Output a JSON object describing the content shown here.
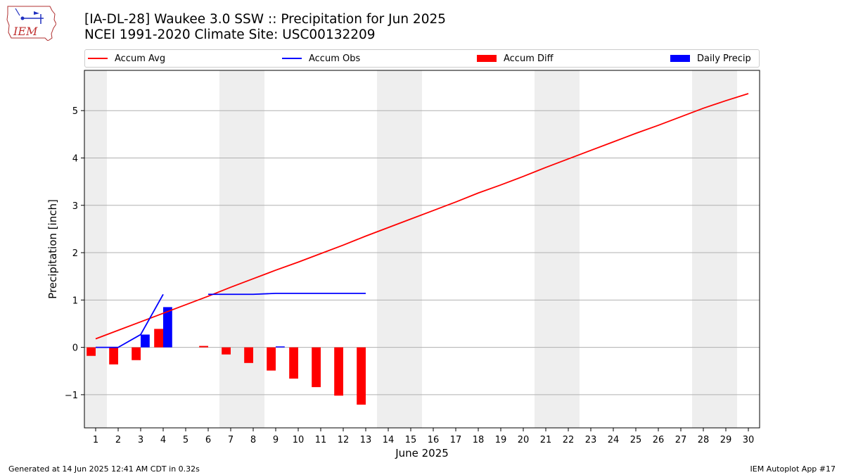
{
  "header": {
    "title_line1": "[IA-DL-28] Waukee 3.0 SSW :: Precipitation for Jun 2025",
    "title_line2": "NCEI 1991-2020 Climate Site: USC00132209"
  },
  "logo": {
    "text": "IEM"
  },
  "footer": {
    "left": "Generated at 14 Jun 2025 12:41 AM CDT in 0.32s",
    "right": "IEM Autoplot App #17"
  },
  "colors": {
    "accum_avg": "#ff0000",
    "accum_obs": "#0000ff",
    "accum_diff": "#ff0000",
    "daily_precip": "#0000ff",
    "weekend_shade": "#eeeeee",
    "grid": "#b0b0b0"
  },
  "chart_data": {
    "type": "bar",
    "title": "[IA-DL-28] Waukee 3.0 SSW :: Precipitation for Jun 2025",
    "subtitle": "NCEI 1991-2020 Climate Site: USC00132209",
    "xlabel": "June 2025",
    "ylabel": "Precipitation [inch]",
    "xlim": [
      0.5,
      30.5
    ],
    "ylim": [
      -1.7,
      5.85
    ],
    "yticks": [
      -1,
      0,
      1,
      2,
      3,
      4,
      5
    ],
    "yticklabels": [
      "−1",
      "0",
      "1",
      "2",
      "3",
      "4",
      "5"
    ],
    "x": [
      1,
      2,
      3,
      4,
      5,
      6,
      7,
      8,
      9,
      10,
      11,
      12,
      13,
      14,
      15,
      16,
      17,
      18,
      19,
      20,
      21,
      22,
      23,
      24,
      25,
      26,
      27,
      28,
      29,
      30
    ],
    "xticklabels": [
      "1",
      "2",
      "3",
      "4",
      "5",
      "6",
      "7",
      "8",
      "9",
      "10",
      "11",
      "12",
      "13",
      "14",
      "15",
      "16",
      "17",
      "18",
      "19",
      "20",
      "21",
      "22",
      "23",
      "24",
      "25",
      "26",
      "27",
      "28",
      "29",
      "30"
    ],
    "legend_position": "top, above plot",
    "grid": "horizontal",
    "weekend_days": [
      1,
      7,
      8,
      14,
      15,
      21,
      22,
      28,
      29
    ],
    "series": [
      {
        "name": "Accum Avg",
        "kind": "line",
        "values": [
          0.18,
          0.36,
          0.54,
          0.72,
          0.9,
          1.08,
          1.27,
          1.45,
          1.63,
          1.8,
          1.98,
          2.16,
          2.35,
          2.53,
          2.71,
          2.89,
          3.07,
          3.26,
          3.43,
          3.61,
          3.8,
          3.98,
          4.16,
          4.34,
          4.52,
          4.69,
          4.87,
          5.05,
          5.21,
          5.36
        ]
      },
      {
        "name": "Accum Obs",
        "kind": "line",
        "values": [
          0.0,
          0.0,
          0.27,
          1.12,
          null,
          1.12,
          1.12,
          1.12,
          1.14,
          1.14,
          1.14,
          1.14,
          1.14,
          null,
          null,
          null,
          null,
          null,
          null,
          null,
          null,
          null,
          null,
          null,
          null,
          null,
          null,
          null,
          null,
          null
        ]
      },
      {
        "name": "Accum Diff",
        "kind": "bar",
        "values": [
          -0.18,
          -0.36,
          -0.27,
          0.39,
          null,
          0.03,
          -0.15,
          -0.33,
          -0.49,
          -0.66,
          -0.84,
          -1.02,
          -1.21,
          null,
          null,
          null,
          null,
          null,
          null,
          null,
          null,
          null,
          null,
          null,
          null,
          null,
          null,
          null,
          null,
          null
        ]
      },
      {
        "name": "Daily Precip",
        "kind": "bar",
        "values": [
          0.0,
          0.0,
          0.27,
          0.85,
          null,
          null,
          null,
          null,
          0.02,
          null,
          null,
          null,
          null,
          null,
          null,
          null,
          null,
          null,
          null,
          null,
          null,
          null,
          null,
          null,
          null,
          null,
          null,
          null,
          null,
          null
        ]
      }
    ]
  }
}
